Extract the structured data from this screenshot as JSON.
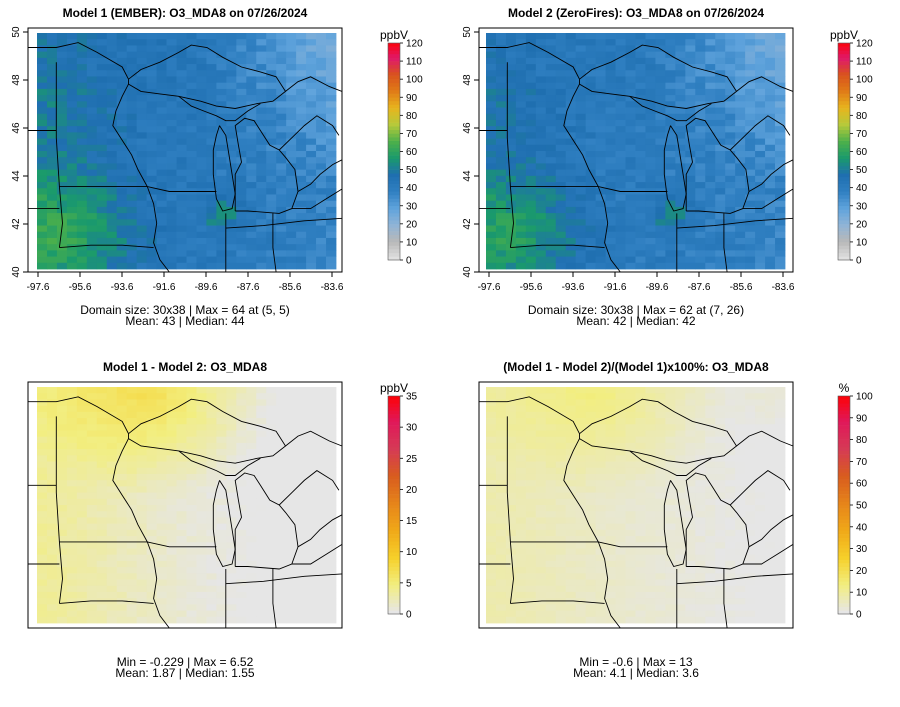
{
  "panels": [
    {
      "title": "Model 1 (EMBER): O3_MDA8 on 07/26/2024",
      "unit": "ppbV",
      "scale": [
        0,
        10,
        20,
        30,
        40,
        50,
        60,
        70,
        80,
        90,
        100,
        110,
        120
      ],
      "palette": "conc",
      "field": "m1",
      "has_axes": true,
      "stats": [
        "Domain size: 30x38 | Max = 64 at (5, 5)",
        "Mean: 43 |  Median: 44"
      ]
    },
    {
      "title": "Model 2 (ZeroFires): O3_MDA8 on 07/26/2024",
      "unit": "ppbV",
      "scale": [
        0,
        10,
        20,
        30,
        40,
        50,
        60,
        70,
        80,
        90,
        100,
        110,
        120
      ],
      "palette": "conc",
      "field": "m2",
      "has_axes": true,
      "stats": [
        "Domain size: 30x38 | Max = 62 at (7, 26)",
        "Mean: 42 |  Median: 42"
      ]
    },
    {
      "title": "Model 1 - Model 2: O3_MDA8",
      "unit": "ppbV",
      "scale": [
        0,
        5,
        10,
        15,
        20,
        25,
        30,
        35
      ],
      "palette": "diff",
      "field": "diff",
      "has_axes": false,
      "stats": [
        "Min = -0.229 | Max = 6.52",
        "Mean: 1.87 |  Median: 1.55"
      ]
    },
    {
      "title": "(Model 1 - Model 2)/(Model 1)x100%: O3_MDA8",
      "unit": "%",
      "scale": [
        0,
        10,
        20,
        30,
        40,
        50,
        60,
        70,
        80,
        90,
        100
      ],
      "palette": "diff",
      "field": "pct",
      "has_axes": false,
      "stats": [
        "Min = -0.6 | Max = 13",
        "Mean: 4.1 |  Median: 3.6"
      ]
    }
  ],
  "map_axes": {
    "lon_ticks": [
      "-97.6",
      "-95.6",
      "-93.6",
      "-91.6",
      "-89.6",
      "-87.6",
      "-85.6",
      "-83.6"
    ],
    "lat_ticks": [
      "40",
      "42",
      "44",
      "46",
      "48",
      "50"
    ]
  },
  "colors": {
    "conc": [
      "#e0e0e0",
      "#b8b8b8",
      "#8fb4d6",
      "#5fa3dc",
      "#2f7fc1",
      "#1f6fb0",
      "#1a9a6c",
      "#4db04a",
      "#b6c93a",
      "#e7b51e",
      "#e07b17",
      "#d9531d",
      "#e0186a",
      "#ff0000"
    ],
    "diff": [
      "#e6e6e6",
      "#f2ee80",
      "#f6d02a",
      "#f0a818",
      "#e6841a",
      "#d85c1e",
      "#d63a55",
      "#e0185a",
      "#ff0000"
    ]
  }
}
